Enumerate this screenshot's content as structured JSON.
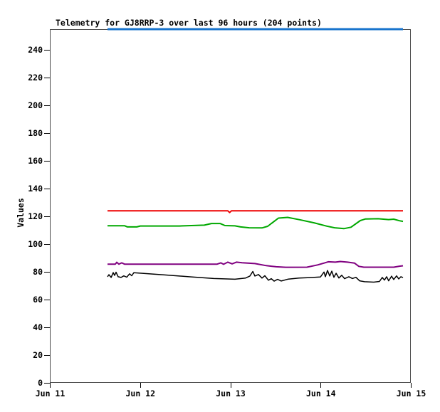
{
  "chart_data": {
    "type": "line",
    "title": "Telemetry for GJ8RRP-3 over last 96 hours (204 points)",
    "xlabel": "",
    "ylabel": "Values",
    "ylim": [
      0,
      255
    ],
    "xlim": [
      0,
      4
    ],
    "x_unit": "days since Jun 11",
    "grid": false,
    "legend_position": "none",
    "y_ticks": [
      0,
      20,
      40,
      60,
      80,
      100,
      120,
      140,
      160,
      180,
      200,
      220,
      240
    ],
    "x_ticks": [
      {
        "day": 0,
        "label": "Jun 11"
      },
      {
        "day": 1,
        "label": "Jun 12"
      },
      {
        "day": 2,
        "label": "Jun 13"
      },
      {
        "day": 3,
        "label": "Jun 14"
      },
      {
        "day": 4,
        "label": "Jun 15"
      }
    ],
    "series": [
      {
        "name": "blue",
        "color": "#1874CD",
        "stroke_width": 3,
        "points": [
          [
            0.639,
            255
          ],
          [
            3.913,
            255
          ]
        ]
      },
      {
        "name": "red",
        "color": "#EE0000",
        "stroke_width": 2,
        "points": [
          [
            0.639,
            124
          ],
          [
            1.972,
            124
          ],
          [
            1.992,
            122.8
          ],
          [
            2.012,
            124
          ],
          [
            3.913,
            124
          ]
        ]
      },
      {
        "name": "green",
        "color": "#00A800",
        "stroke_width": 2,
        "points": [
          [
            0.639,
            113.3
          ],
          [
            0.828,
            113.3
          ],
          [
            0.86,
            112.4
          ],
          [
            0.963,
            112.4
          ],
          [
            1.002,
            113.1
          ],
          [
            1.436,
            113.1
          ],
          [
            1.712,
            113.7
          ],
          [
            1.791,
            114.9
          ],
          [
            1.886,
            114.9
          ],
          [
            1.941,
            113.4
          ],
          [
            2.051,
            113.2
          ],
          [
            2.114,
            112.4
          ],
          [
            2.209,
            111.8
          ],
          [
            2.351,
            111.7
          ],
          [
            2.414,
            112.9
          ],
          [
            2.533,
            118.8
          ],
          [
            2.635,
            119.3
          ],
          [
            2.769,
            117.6
          ],
          [
            2.927,
            115.4
          ],
          [
            3.069,
            113.0
          ],
          [
            3.156,
            111.8
          ],
          [
            3.258,
            111.2
          ],
          [
            3.337,
            112.2
          ],
          [
            3.44,
            117.0
          ],
          [
            3.495,
            118.1
          ],
          [
            3.637,
            118.3
          ],
          [
            3.755,
            117.7
          ],
          [
            3.811,
            118.0
          ],
          [
            3.874,
            116.9
          ],
          [
            3.913,
            116.4
          ]
        ]
      },
      {
        "name": "purple",
        "color": "#800080",
        "stroke_width": 2,
        "points": [
          [
            0.639,
            85.6
          ],
          [
            0.726,
            85.6
          ],
          [
            0.742,
            86.9
          ],
          [
            0.765,
            85.6
          ],
          [
            0.797,
            86.5
          ],
          [
            0.828,
            85.6
          ],
          [
            1.854,
            85.6
          ],
          [
            1.894,
            86.5
          ],
          [
            1.925,
            85.5
          ],
          [
            1.972,
            87.0
          ],
          [
            2.02,
            85.8
          ],
          [
            2.067,
            87.0
          ],
          [
            2.13,
            86.6
          ],
          [
            2.193,
            86.3
          ],
          [
            2.272,
            86.0
          ],
          [
            2.398,
            84.5
          ],
          [
            2.509,
            83.7
          ],
          [
            2.612,
            83.3
          ],
          [
            2.848,
            83.4
          ],
          [
            2.967,
            85.0
          ],
          [
            3.046,
            86.5
          ],
          [
            3.085,
            87.3
          ],
          [
            3.164,
            87.0
          ],
          [
            3.219,
            87.5
          ],
          [
            3.298,
            87.0
          ],
          [
            3.377,
            86.3
          ],
          [
            3.424,
            84.0
          ],
          [
            3.479,
            83.4
          ],
          [
            3.811,
            83.4
          ],
          [
            3.874,
            84.1
          ],
          [
            3.913,
            84.4
          ]
        ]
      },
      {
        "name": "black",
        "color": "#000000",
        "stroke_width": 1.5,
        "points": [
          [
            0.639,
            76.5
          ],
          [
            0.655,
            78.0
          ],
          [
            0.679,
            76.0
          ],
          [
            0.702,
            79.5
          ],
          [
            0.718,
            77.5
          ],
          [
            0.734,
            79.8
          ],
          [
            0.757,
            76.5
          ],
          [
            0.789,
            76.0
          ],
          [
            0.82,
            77.1
          ],
          [
            0.852,
            76.2
          ],
          [
            0.884,
            78.6
          ],
          [
            0.907,
            77.2
          ],
          [
            0.931,
            79.4
          ],
          [
            1.262,
            77.9
          ],
          [
            1.578,
            76.3
          ],
          [
            1.815,
            75.2
          ],
          [
            2.051,
            74.7
          ],
          [
            2.17,
            75.6
          ],
          [
            2.217,
            77.0
          ],
          [
            2.249,
            80.3
          ],
          [
            2.272,
            77.0
          ],
          [
            2.312,
            78.1
          ],
          [
            2.351,
            75.5
          ],
          [
            2.383,
            77.2
          ],
          [
            2.422,
            74.0
          ],
          [
            2.454,
            75.1
          ],
          [
            2.485,
            73.3
          ],
          [
            2.524,
            74.6
          ],
          [
            2.564,
            73.4
          ],
          [
            2.643,
            74.8
          ],
          [
            2.761,
            75.5
          ],
          [
            2.88,
            75.9
          ],
          [
            2.998,
            76.3
          ],
          [
            3.038,
            79.9
          ],
          [
            3.053,
            76.5
          ],
          [
            3.077,
            81.0
          ],
          [
            3.101,
            77.0
          ],
          [
            3.124,
            80.5
          ],
          [
            3.148,
            76.1
          ],
          [
            3.172,
            79.0
          ],
          [
            3.203,
            75.6
          ],
          [
            3.235,
            77.6
          ],
          [
            3.266,
            75.1
          ],
          [
            3.314,
            76.5
          ],
          [
            3.353,
            75.2
          ],
          [
            3.392,
            76.1
          ],
          [
            3.432,
            73.6
          ],
          [
            3.487,
            72.9
          ],
          [
            3.59,
            72.6
          ],
          [
            3.653,
            73.1
          ],
          [
            3.684,
            76.0
          ],
          [
            3.708,
            74.1
          ],
          [
            3.732,
            76.5
          ],
          [
            3.755,
            73.6
          ],
          [
            3.787,
            76.9
          ],
          [
            3.811,
            74.5
          ],
          [
            3.842,
            77.1
          ],
          [
            3.866,
            74.9
          ],
          [
            3.89,
            76.5
          ],
          [
            3.913,
            75.9
          ]
        ]
      }
    ]
  }
}
